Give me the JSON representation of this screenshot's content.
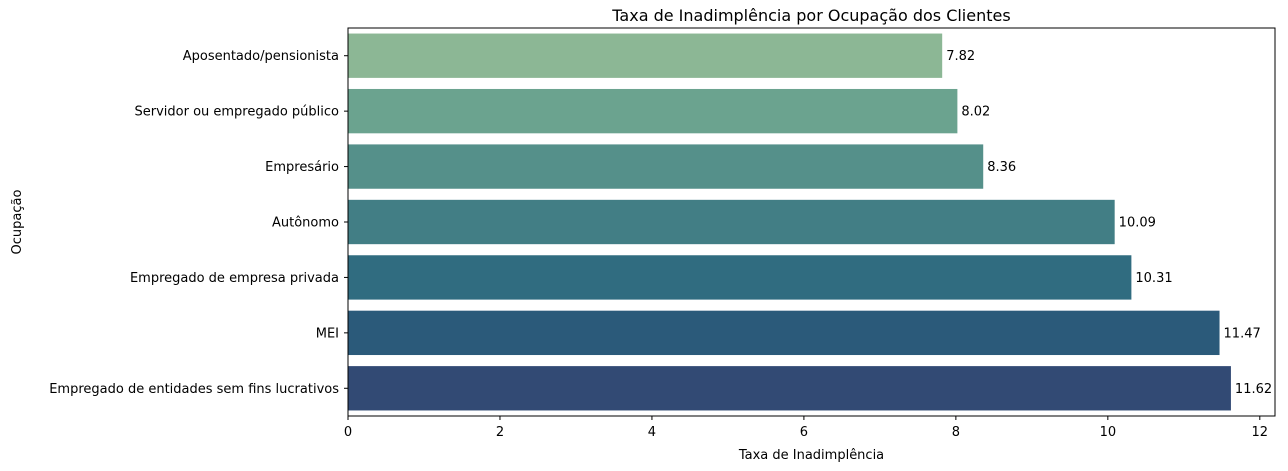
{
  "chart_data": {
    "type": "bar",
    "orientation": "horizontal",
    "title": "Taxa de Inadimplência por Ocupação dos Clientes",
    "xlabel": "Taxa de Inadimplência",
    "ylabel": "Ocupação",
    "xlim": [
      0,
      12.2
    ],
    "xticks": [
      0,
      2,
      4,
      6,
      8,
      10,
      12
    ],
    "grid": false,
    "categories": [
      "Aposentado/pensionista",
      "Servidor ou empregado público",
      "Empresário",
      "Autônomo",
      "Empregado de empresa privada",
      "MEI",
      "Empregado de entidades sem fins lucrativos"
    ],
    "values": [
      7.82,
      8.02,
      8.36,
      10.09,
      10.31,
      11.47,
      11.62
    ],
    "value_labels": [
      "7.82",
      "8.02",
      "8.36",
      "10.09",
      "10.31",
      "11.47",
      "11.62"
    ],
    "colors": [
      "#8CB795",
      "#6BA38F",
      "#55908A",
      "#427E85",
      "#306C80",
      "#2B5A7A",
      "#324A74"
    ]
  }
}
